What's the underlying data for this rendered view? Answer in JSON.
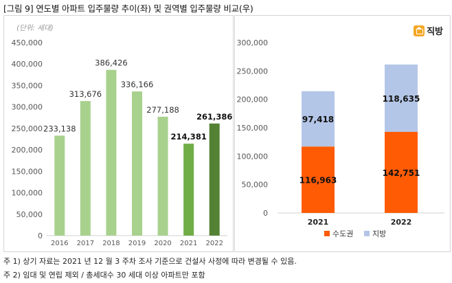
{
  "figure_title": "[그림 9] 연도별 아파트 입주물량 추이(좌) 및 권역별 입주물량 비교(우)",
  "unit_label": "(단위: 세대)",
  "logo_icon": "house-icon",
  "logo_text": "직방",
  "notes": [
    "주 1) 상기 자료는 2021 년 12 월 3 주차 조사 기준으로 건설사 사정에 따라 변경될 수 있음.",
    "주 2) 임대 및 연립 제외 / 총세대수 30 세대 이상 아파트만 포함"
  ],
  "chart_data": [
    {
      "type": "bar",
      "categories": [
        "2016",
        "2017",
        "2018",
        "2019",
        "2020",
        "2021",
        "2022"
      ],
      "values": [
        233138,
        313676,
        386426,
        336166,
        277188,
        214381,
        261386
      ],
      "value_labels": [
        "233,138",
        "313,676",
        "386,426",
        "336,166",
        "277,188",
        "214,381",
        "261,386"
      ],
      "bar_colors": [
        "#a9d18e",
        "#a9d18e",
        "#a9d18e",
        "#a9d18e",
        "#a9d18e",
        "#70ad47",
        "#548235"
      ],
      "ylim": [
        0,
        450000
      ],
      "yticks": [
        "0",
        "50,000",
        "100,000",
        "150,000",
        "200,000",
        "250,000",
        "300,000",
        "350,000",
        "400,000",
        "450,000"
      ],
      "grid": false
    },
    {
      "type": "bar",
      "stacked": true,
      "categories": [
        "2021",
        "2022"
      ],
      "series": [
        {
          "name": "수도권",
          "values": [
            116963,
            142751
          ],
          "labels": [
            "116,963",
            "142,751"
          ],
          "color": "#ff5b05"
        },
        {
          "name": "지방",
          "values": [
            97418,
            118635
          ],
          "labels": [
            "97,418",
            "118,635"
          ],
          "color": "#b4c6e7"
        }
      ],
      "ylim": [
        0,
        300000
      ],
      "yticks": [
        "0",
        "50,000",
        "100,000",
        "150,000",
        "200,000",
        "250,000",
        "300,000"
      ],
      "legend": "bottom",
      "grid": false
    }
  ]
}
